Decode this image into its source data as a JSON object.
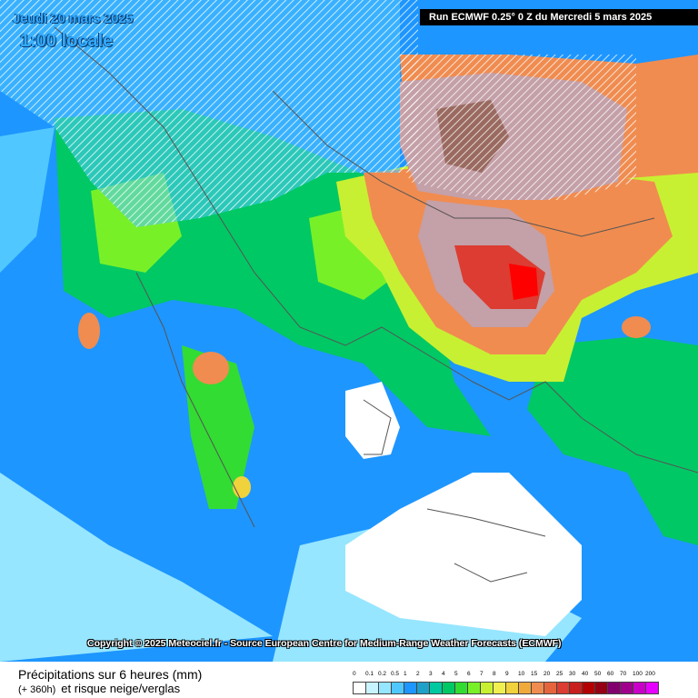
{
  "header": {
    "date": "Jeudi 20 mars 2025",
    "time": "1:00 locale",
    "run": "Run ECMWF 0.25° 0 Z du Mercredi 5 mars 2025"
  },
  "copyright": "Copyright © 2025 Meteociel.fr - Source European Centre for Medium-Range Weather Forecasts (ECMWF)",
  "footer": {
    "title": "Précipitations sur 6 heures (mm)",
    "lead": "(+ 360h)",
    "subtitle": "et risque neige/verglas"
  },
  "legend": {
    "labels": [
      "0",
      "0.1",
      "0.2",
      "0.5",
      "1",
      "2",
      "3",
      "4",
      "5",
      "6",
      "7",
      "8",
      "9",
      "10",
      "15",
      "20",
      "25",
      "30",
      "40",
      "50",
      "60",
      "70",
      "100",
      "200"
    ],
    "colors": [
      "#ffffff",
      "#c8f4ff",
      "#96e6ff",
      "#50c8ff",
      "#1e96ff",
      "#1ea0c8",
      "#00c8a0",
      "#00c864",
      "#32dc32",
      "#78f028",
      "#c8f032",
      "#f0f050",
      "#f0d23c",
      "#f0aa3c",
      "#f08c50",
      "#e6643c",
      "#dc3c32",
      "#c81e1e",
      "#b40000",
      "#960014",
      "#82006e",
      "#a0008c",
      "#c800c8",
      "#e600ff"
    ]
  },
  "map": {
    "land_color": "#ffffff",
    "sea_color": "#ffffff",
    "border_color": "#555555"
  }
}
